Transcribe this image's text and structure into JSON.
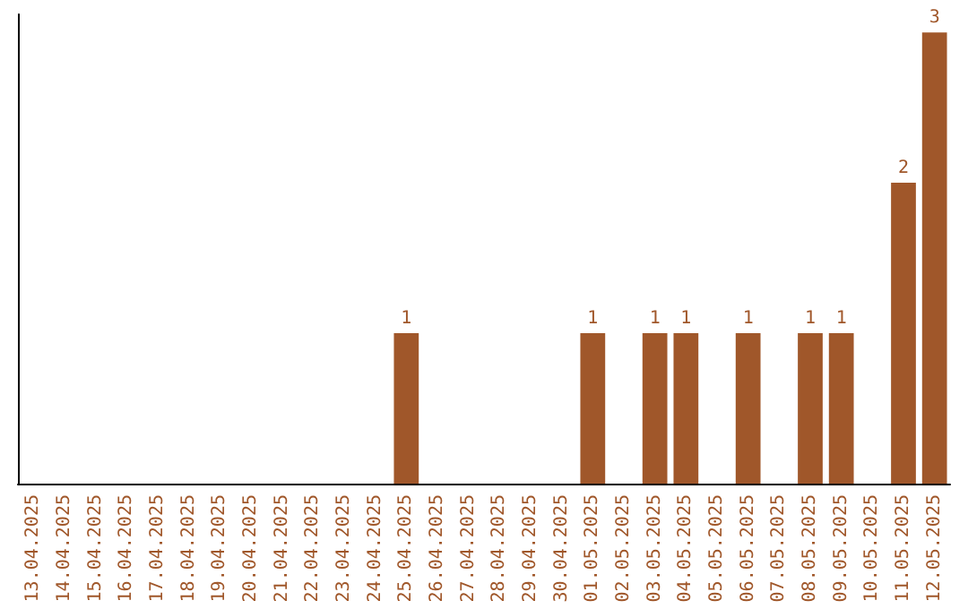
{
  "chart_data": {
    "type": "bar",
    "categories": [
      "13.04.2025",
      "14.04.2025",
      "15.04.2025",
      "16.04.2025",
      "17.04.2025",
      "18.04.2025",
      "19.04.2025",
      "20.04.2025",
      "21.04.2025",
      "22.04.2025",
      "23.04.2025",
      "24.04.2025",
      "25.04.2025",
      "26.04.2025",
      "27.04.2025",
      "28.04.2025",
      "29.04.2025",
      "30.04.2025",
      "01.05.2025",
      "02.05.2025",
      "03.05.2025",
      "04.05.2025",
      "05.05.2025",
      "06.05.2025",
      "07.05.2025",
      "08.05.2025",
      "09.05.2025",
      "10.05.2025",
      "11.05.2025",
      "12.05.2025"
    ],
    "values": [
      null,
      null,
      null,
      null,
      null,
      null,
      null,
      null,
      null,
      null,
      null,
      null,
      1,
      null,
      null,
      null,
      null,
      null,
      1,
      null,
      1,
      1,
      null,
      1,
      null,
      1,
      1,
      null,
      2,
      3
    ],
    "value_labels": [
      null,
      null,
      null,
      null,
      null,
      null,
      null,
      null,
      null,
      null,
      null,
      null,
      "1",
      null,
      null,
      null,
      null,
      null,
      "1",
      null,
      "1",
      "1",
      null,
      "1",
      null,
      "1",
      "1",
      null,
      "2",
      "3"
    ],
    "color": "#a0572a",
    "grid": false,
    "tick_labels": "x"
  }
}
